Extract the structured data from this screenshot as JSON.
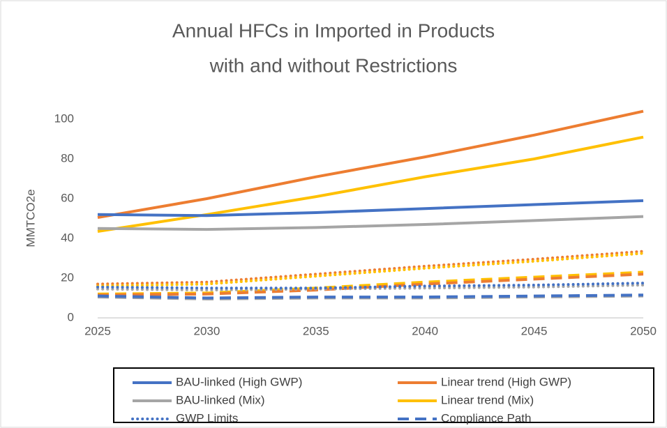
{
  "chart_data": {
    "type": "line",
    "title": [
      "Annual HFCs in Imported in Products",
      "with and without Restrictions"
    ],
    "y_label": "MMTCO2e",
    "x": [
      2025,
      2030,
      2035,
      2040,
      2045,
      2050
    ],
    "xlim": [
      2025,
      2050
    ],
    "xticks": [
      2025,
      2030,
      2035,
      2040,
      2045,
      2050
    ],
    "ylim": [
      0,
      100
    ],
    "yticks": [
      0,
      20,
      40,
      60,
      80,
      100
    ],
    "grid": false,
    "legend": "bottom",
    "series": [
      {
        "name": "BAU-linked (High GWP)",
        "color": "#4472c4",
        "style": "solid",
        "values": [
          52,
          51.5,
          53,
          55,
          57,
          59
        ]
      },
      {
        "name": "Linear trend (High GWP)",
        "color": "#ed7d31",
        "style": "solid",
        "values": [
          50.5,
          60,
          71,
          81,
          92,
          104
        ]
      },
      {
        "name": "BAU-linked (Mix)",
        "color": "#a5a5a5",
        "style": "solid",
        "values": [
          45,
          44.5,
          45.5,
          47,
          49,
          51
        ]
      },
      {
        "name": "Linear trend (Mix)",
        "color": "#ffc000",
        "style": "solid",
        "values": [
          43.5,
          52,
          61,
          71,
          80,
          91
        ]
      },
      {
        "name": "GWP Limits",
        "color": "#4472c4",
        "style": "dotted",
        "values": [
          15.5,
          15,
          15,
          16,
          16.5,
          17.5
        ]
      },
      {
        "name": "Compliance Path",
        "color": "#4472c4",
        "style": "dashed",
        "values": [
          11,
          10,
          10.5,
          10.5,
          11,
          11.5
        ]
      },
      {
        "color": "#a5a5a5",
        "style": "dotted",
        "values": [
          14.5,
          14,
          14.5,
          15,
          15.5,
          16.5
        ]
      },
      {
        "color": "#ffc000",
        "style": "dotted",
        "values": [
          16,
          17,
          21,
          25,
          28.5,
          32.5
        ]
      },
      {
        "color": "#ed7d31",
        "style": "dotted",
        "values": [
          17,
          18,
          22,
          26,
          29.5,
          33.5
        ]
      },
      {
        "color": "#a5a5a5",
        "style": "dashed",
        "values": [
          10.5,
          9.5,
          10,
          10,
          10.5,
          11
        ]
      },
      {
        "color": "#ed7d31",
        "style": "dashed",
        "values": [
          11.5,
          12,
          14,
          17,
          19.5,
          22
        ]
      },
      {
        "color": "#ffc000",
        "style": "dashed",
        "values": [
          12,
          12.5,
          15,
          18,
          20.5,
          23
        ]
      }
    ]
  }
}
